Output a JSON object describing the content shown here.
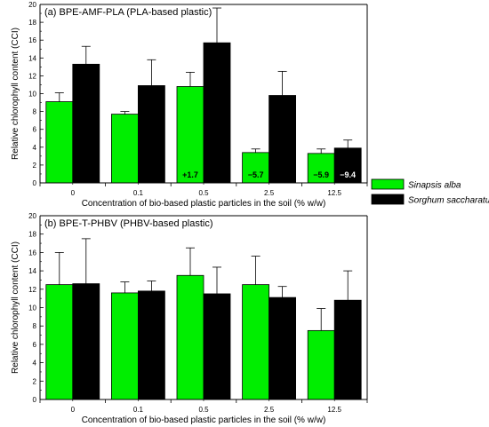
{
  "colors": {
    "sinapis": "#00ee00",
    "sorghum": "#000000",
    "axis": "#000000",
    "error_bar": "#000000"
  },
  "legend": {
    "items": [
      {
        "label": "Sinapsis alba",
        "color": "#00ee00"
      },
      {
        "label": "Sorghum saccharatum",
        "color": "#000000"
      }
    ]
  },
  "chart_data": [
    {
      "type": "bar",
      "title": "(a) BPE-AMF-PLA (PLA-based plastic)",
      "xlabel": "Concentration of bio-based plastic particles in the soil (% w/w)",
      "ylabel": "Relative chlorophyll content (CCI)",
      "ylim": [
        0,
        20
      ],
      "yticks": [
        0,
        2,
        4,
        6,
        8,
        10,
        12,
        14,
        16,
        18,
        20
      ],
      "categories": [
        "0",
        "0.1",
        "0.5",
        "2.5",
        "12.5"
      ],
      "series": [
        {
          "name": "Sinapsis alba",
          "values": [
            9.1,
            7.7,
            10.8,
            3.4,
            3.3
          ],
          "errors": [
            1.0,
            0.3,
            1.6,
            0.4,
            0.5
          ],
          "labels": [
            "",
            "",
            "+1.7",
            "−5.7",
            "−5.9"
          ]
        },
        {
          "name": "Sorghum saccharatum",
          "values": [
            13.3,
            10.9,
            15.7,
            9.8,
            3.9
          ],
          "errors": [
            2.0,
            2.9,
            3.9,
            2.7,
            0.9
          ],
          "labels": [
            "",
            "",
            "",
            "",
            "−9.4"
          ]
        }
      ],
      "grid": false,
      "legend_position": "right"
    },
    {
      "type": "bar",
      "title": "(b) BPE-T-PHBV (PHBV-based plastic)",
      "xlabel": "Concentration of bio-based plastic particles in the soil (% w/w)",
      "ylabel": "Relative chlorophyll content (CCI)",
      "ylim": [
        0,
        20
      ],
      "yticks": [
        0,
        2,
        4,
        6,
        8,
        10,
        12,
        14,
        16,
        18,
        20
      ],
      "categories": [
        "0",
        "0.1",
        "0.5",
        "2.5",
        "12.5"
      ],
      "series": [
        {
          "name": "Sinapsis alba",
          "values": [
            12.5,
            11.6,
            13.5,
            12.5,
            7.5
          ],
          "errors": [
            3.5,
            1.2,
            3.0,
            3.1,
            2.4
          ],
          "labels": [
            "",
            "",
            "",
            "",
            ""
          ]
        },
        {
          "name": "Sorghum saccharatum",
          "values": [
            12.6,
            11.8,
            11.5,
            11.1,
            10.8
          ],
          "errors": [
            4.9,
            1.1,
            2.9,
            1.2,
            3.2
          ],
          "labels": [
            "",
            "",
            "",
            "",
            ""
          ]
        }
      ],
      "grid": false,
      "legend_position": "none"
    }
  ]
}
